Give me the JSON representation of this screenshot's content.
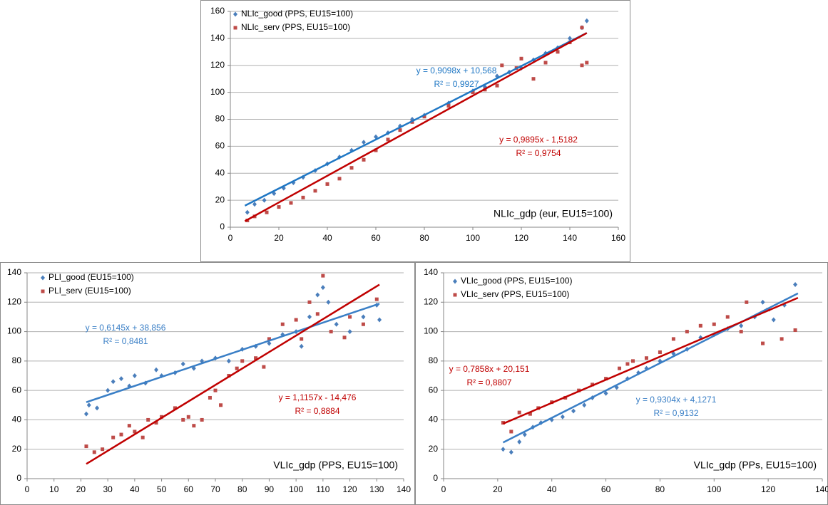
{
  "chart_data": [
    {
      "type": "scatter",
      "xlabel": "NLIc_gdp (eur, EU15=100)",
      "grid": true,
      "xlim": [
        0,
        160
      ],
      "ylim": [
        0,
        160
      ],
      "xticks": [
        0,
        20,
        40,
        60,
        80,
        100,
        120,
        140,
        160
      ],
      "yticks": [
        0,
        20,
        40,
        60,
        80,
        100,
        120,
        140,
        160
      ],
      "series": [
        {
          "name": "NLIc_good (PPS, EU15=100)",
          "color": "#4a7ebb",
          "marker": "diamond",
          "x": [
            7,
            10,
            14,
            18,
            22,
            26,
            30,
            35,
            40,
            45,
            50,
            55,
            60,
            65,
            70,
            75,
            80,
            90,
            100,
            105,
            110,
            115,
            120,
            125,
            130,
            135,
            140,
            145,
            147
          ],
          "values": [
            11,
            17,
            20,
            25,
            29,
            33,
            37,
            42,
            47,
            52,
            57,
            63,
            67,
            70,
            75,
            80,
            83,
            92,
            101,
            104,
            112,
            115,
            118,
            124,
            129,
            133,
            140,
            148,
            153
          ],
          "trendline": {
            "color": "#1f77c4",
            "x": [
              6,
              147
            ],
            "y": [
              16,
              144
            ],
            "equation": "y = 0,9098x + 10,568",
            "r2": "R² = 0,9927"
          }
        },
        {
          "name": "NLIc_serv (PPS, EU15=100)",
          "color": "#be4b48",
          "marker": "square",
          "x": [
            7,
            10,
            15,
            20,
            25,
            30,
            35,
            40,
            45,
            50,
            55,
            60,
            65,
            70,
            75,
            80,
            90,
            100,
            105,
            110,
            112,
            118,
            120,
            125,
            130,
            135,
            140,
            145,
            147,
            145
          ],
          "values": [
            5,
            8,
            11,
            15,
            18,
            22,
            27,
            32,
            36,
            44,
            50,
            57,
            65,
            72,
            78,
            82,
            90,
            100,
            102,
            105,
            120,
            118,
            125,
            110,
            122,
            130,
            137,
            148,
            122,
            120
          ],
          "trendline": {
            "color": "#c00000",
            "x": [
              6,
              147
            ],
            "y": [
              4.5,
              144
            ],
            "equation": "y = 0,9895x - 1,5182",
            "r2": "R² = 0,9754"
          }
        }
      ]
    },
    {
      "type": "scatter",
      "xlabel": "VLIc_gdp (PPS, EU15=100)",
      "grid": true,
      "xlim": [
        0,
        140
      ],
      "ylim": [
        0,
        140
      ],
      "xticks": [
        0,
        10,
        20,
        30,
        40,
        50,
        60,
        70,
        80,
        90,
        100,
        110,
        120,
        130,
        140
      ],
      "yticks": [
        0,
        20,
        40,
        60,
        80,
        100,
        120,
        140
      ],
      "series": [
        {
          "name": "PLI_good (EU15=100)",
          "color": "#4a7ebb",
          "marker": "diamond",
          "x": [
            22,
            23,
            26,
            30,
            32,
            35,
            38,
            40,
            44,
            48,
            50,
            55,
            58,
            62,
            65,
            70,
            75,
            80,
            85,
            90,
            95,
            100,
            102,
            105,
            108,
            110,
            112,
            115,
            120,
            125,
            130,
            131
          ],
          "values": [
            44,
            50,
            48,
            60,
            66,
            68,
            63,
            70,
            65,
            74,
            70,
            72,
            78,
            75,
            80,
            82,
            80,
            88,
            90,
            92,
            98,
            100,
            90,
            110,
            125,
            130,
            120,
            105,
            100,
            110,
            118,
            108
          ],
          "trendline": {
            "color": "#3a7fc6",
            "x": [
              22,
              131
            ],
            "y": [
              52,
              119
            ],
            "equation": "y = 0,6145x + 38,856",
            "r2": "R² = 0,8481"
          }
        },
        {
          "name": "PLI_serv (EU15=100)",
          "color": "#be4b48",
          "marker": "square",
          "x": [
            22,
            25,
            28,
            32,
            35,
            38,
            40,
            43,
            45,
            48,
            50,
            55,
            58,
            60,
            62,
            65,
            68,
            70,
            72,
            75,
            78,
            80,
            85,
            88,
            90,
            95,
            100,
            102,
            105,
            108,
            110,
            113,
            118,
            120,
            125,
            130
          ],
          "values": [
            22,
            18,
            20,
            28,
            30,
            36,
            32,
            28,
            40,
            38,
            42,
            48,
            40,
            42,
            36,
            40,
            55,
            60,
            50,
            70,
            75,
            80,
            82,
            76,
            95,
            105,
            108,
            95,
            120,
            112,
            138,
            100,
            96,
            110,
            105,
            122
          ],
          "trendline": {
            "color": "#c00000",
            "x": [
              22,
              131
            ],
            "y": [
              10,
              132
            ],
            "equation": "y = 1,1157x - 14,476",
            "r2": "R² = 0,8884"
          }
        }
      ]
    },
    {
      "type": "scatter",
      "xlabel": "VLIc_gdp (PPs, EU15=100)",
      "grid": true,
      "xlim": [
        0,
        140
      ],
      "ylim": [
        0,
        140
      ],
      "xticks": [
        0,
        20,
        40,
        60,
        80,
        100,
        120,
        140
      ],
      "yticks": [
        0,
        20,
        40,
        60,
        80,
        100,
        120,
        140
      ],
      "series": [
        {
          "name": "VLIc_good (PPS, EU15=100)",
          "color": "#4a7ebb",
          "marker": "diamond",
          "x": [
            22,
            25,
            28,
            30,
            33,
            36,
            40,
            44,
            48,
            52,
            55,
            60,
            64,
            68,
            72,
            75,
            80,
            85,
            90,
            95,
            100,
            105,
            110,
            115,
            118,
            122,
            126,
            130
          ],
          "values": [
            20,
            18,
            25,
            30,
            35,
            38,
            40,
            42,
            46,
            50,
            55,
            58,
            62,
            68,
            72,
            75,
            80,
            85,
            88,
            96,
            98,
            102,
            104,
            110,
            120,
            108,
            118,
            132
          ],
          "trendline": {
            "color": "#3a7fc6",
            "x": [
              22,
              131
            ],
            "y": [
              24.6,
              126
            ],
            "equation": "y = 0,9304x + 4,1271",
            "r2": "R² = 0,9132"
          }
        },
        {
          "name": "VLIc_serv (PPS, EU15=100)",
          "color": "#be4b48",
          "marker": "square",
          "x": [
            22,
            25,
            28,
            32,
            35,
            40,
            45,
            50,
            55,
            60,
            65,
            68,
            70,
            75,
            80,
            85,
            90,
            95,
            100,
            105,
            110,
            112,
            118,
            120,
            125,
            130
          ],
          "values": [
            38,
            32,
            45,
            44,
            48,
            52,
            55,
            60,
            64,
            68,
            75,
            78,
            80,
            82,
            86,
            95,
            100,
            104,
            105,
            110,
            100,
            120,
            92,
            115,
            95,
            101
          ],
          "trendline": {
            "color": "#c00000",
            "x": [
              22,
              131
            ],
            "y": [
              37.4,
              123
            ],
            "equation": "y = 0,7858x + 20,151",
            "r2": "R² = 0,8807"
          }
        }
      ]
    }
  ]
}
